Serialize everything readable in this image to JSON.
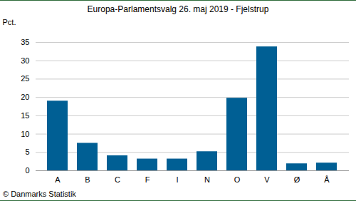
{
  "chart_data": {
    "type": "bar",
    "title": "Europa-Parlamentsvalg 26. maj 2019 - Fjelstrup",
    "y_label": "Pct.",
    "caption": "© Danmarks Statistik",
    "categories": [
      "A",
      "B",
      "C",
      "F",
      "I",
      "N",
      "O",
      "V",
      "Ø",
      "Å"
    ],
    "values": [
      19.0,
      7.5,
      4.1,
      3.2,
      3.2,
      5.2,
      19.8,
      33.8,
      1.9,
      2.1
    ],
    "color": "#005f94",
    "ylim": [
      0,
      35
    ],
    "yticks": [
      0,
      5,
      10,
      15,
      20,
      25,
      30,
      35
    ],
    "grid": true
  }
}
